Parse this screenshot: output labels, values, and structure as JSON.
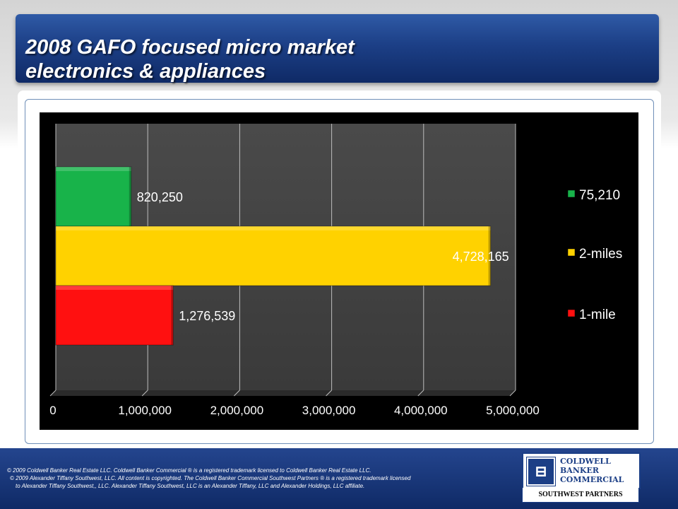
{
  "header": {
    "title_line1": "2008 GAFO focused micro market",
    "title_line2": "electronics & appliances"
  },
  "chart_data": {
    "type": "bar",
    "orientation": "horizontal",
    "categories": [
      "75,210",
      "2-miles",
      "1-mile"
    ],
    "values": [
      820250,
      4728165,
      1276539
    ],
    "value_labels": [
      "820,250",
      "4,728,165",
      "1,276,539"
    ],
    "colors": [
      "#18b34a",
      "#ffd200",
      "#ff1010"
    ],
    "xlim": [
      0,
      5000000
    ],
    "xticks": [
      0,
      1000000,
      2000000,
      3000000,
      4000000,
      5000000
    ],
    "xtick_labels": [
      "0",
      "1,000,000",
      "2,000,000",
      "3,000,000",
      "4,000,000",
      "5,000,000"
    ],
    "title": "",
    "xlabel": "",
    "ylabel": "",
    "grid": "vertical",
    "legend": {
      "position": "right",
      "entries": [
        "75,210",
        "2-miles",
        "1-mile"
      ]
    }
  },
  "footer": {
    "line1": "© 2009 Coldwell Banker Real Estate LLC. Coldwell Banker Commercial ® is a registered trademark licensed to Coldwell Banker Real Estate LLC.",
    "line2": "© 2009 Alexander Tiffany Southwest, LLC. All content is copyrighted. The Coldwell Banker Commercial Southwest Partners ® is a registered trademark licensed",
    "line3": "to Alexander Tiffany Southwest,, LLC.  Alexander Tiffany Southwest, LLC is an Alexander Tiffany, LLC and Alexander Holdings, LLC affiliate."
  },
  "logo": {
    "word1": "COLDWELL",
    "word2": "BANKER",
    "word3": "COMMERCIAL",
    "subtitle": "SOUTHWEST PARTNERS"
  }
}
